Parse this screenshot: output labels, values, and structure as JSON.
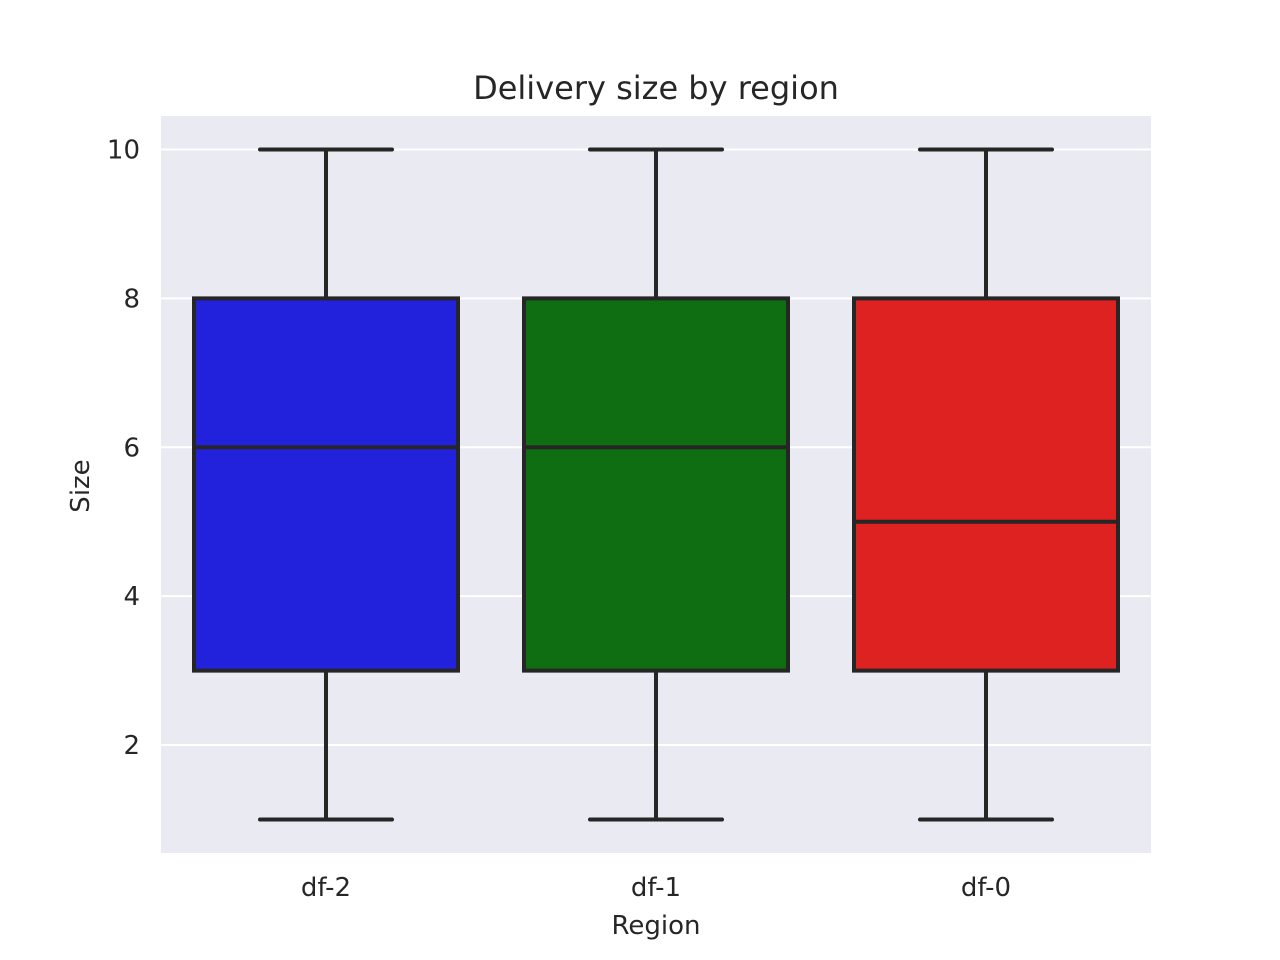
{
  "chart_data": {
    "type": "box",
    "title": "Delivery size by region",
    "xlabel": "Region",
    "ylabel": "Size",
    "ylim": [
      0.55,
      10.45
    ],
    "yticks": [
      2,
      4,
      6,
      8,
      10
    ],
    "grid": true,
    "categories": [
      "df-2",
      "df-1",
      "df-0"
    ],
    "boxes": [
      {
        "category": "df-2",
        "whisker_low": 1,
        "q1": 3,
        "median": 6,
        "q3": 8,
        "whisker_high": 10,
        "color": "#2222dd"
      },
      {
        "category": "df-1",
        "whisker_low": 1,
        "q1": 3,
        "median": 6,
        "q3": 8,
        "whisker_high": 10,
        "color": "#0f6e11"
      },
      {
        "category": "df-0",
        "whisker_low": 1,
        "q1": 3,
        "median": 5,
        "q3": 8,
        "whisker_high": 10,
        "color": "#de2121"
      }
    ],
    "colors": {
      "plot_background": "#eaeaf2",
      "grid": "#ffffff",
      "line": "#262626",
      "text": "#262626"
    }
  }
}
